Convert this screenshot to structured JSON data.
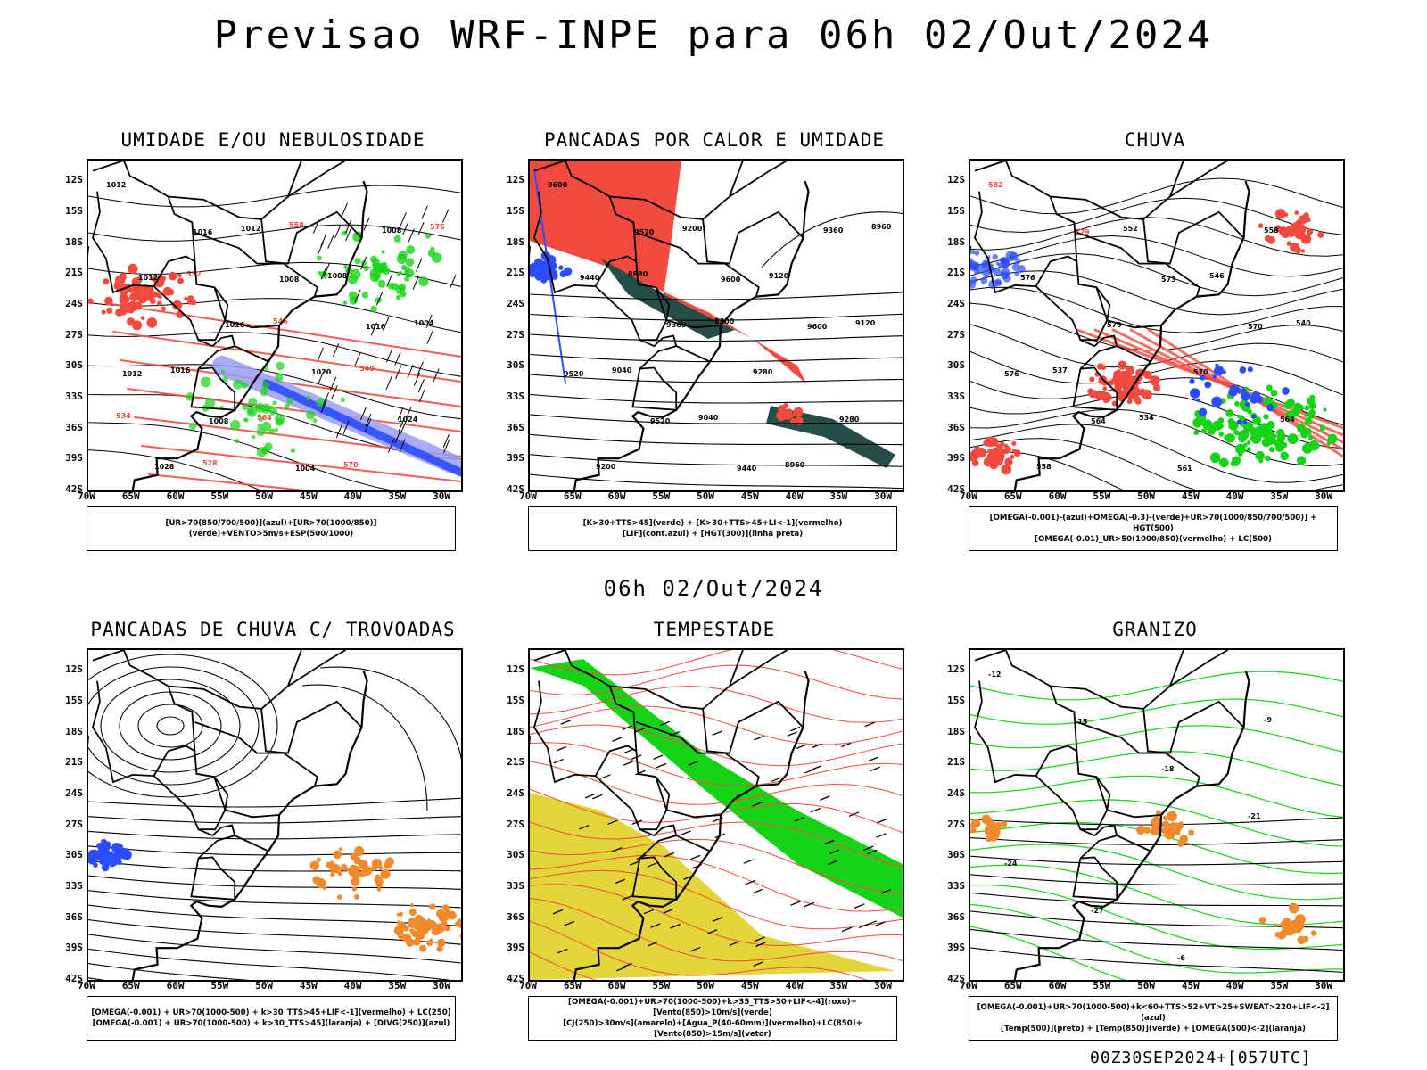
{
  "title": "Previsao WRF-INPE  para 06h 02/Out/2024",
  "subtitle": "06h 02/Out/2024",
  "footer": "00Z30SEP2024+[057UTC]",
  "lat_labels": [
    "12S",
    "15S",
    "18S",
    "21S",
    "24S",
    "27S",
    "30S",
    "33S",
    "36S",
    "39S",
    "42S"
  ],
  "lon_labels": [
    "70W",
    "65W",
    "60W",
    "55W",
    "50W",
    "45W",
    "40W",
    "35W",
    "30W"
  ],
  "colors": {
    "red": "#f24a3e",
    "green": "#17d317",
    "blue": "#2b4dff",
    "lavender": "#9a9ef2",
    "teal": "#264d48",
    "yellow": "#e3d63a",
    "orange": "#f08a2c",
    "black": "#000000"
  },
  "panels": [
    {
      "title": "UMIDADE E/OU NEBULOSIDADE",
      "legend": [
        "[UR>70(850/700/500)](azul)+[UR>70(1000/850)](verde)+VENTO>5m/s+ESP(500/1000)"
      ]
    },
    {
      "title": "PANCADAS POR CALOR E UMIDADE",
      "legend": [
        "[K>30+TTS>45](verde) + [K>30+TTS>45+LI<-1](vermelho)",
        "[LIF](cont.azul) + [HGT(300)](linha preta)"
      ]
    },
    {
      "title": "CHUVA",
      "legend": [
        "[OMEGA(-0.001)-(azul)+OMEGA(-0.3)-(verde)+UR>70(1000/850/700/500)] + HGT(500)",
        "[OMEGA(-0.01)_UR>50(1000/850)(vermelho) + LC(500)"
      ]
    },
    {
      "title": "PANCADAS DE CHUVA C/ TROVOADAS",
      "legend": [
        "[OMEGA(-0.001) + UR>70(1000-500) + k>30_TTS>45+LIF<-1](vermelho) + LC(250)",
        "[OMEGA(-0.001) + UR>70(1000-500) + k>30_TTS>45](laranja) + [DIVG(250)](azul)"
      ]
    },
    {
      "title": "TEMPESTADE",
      "legend": [
        "[OMEGA(-0.001)+UR>70(1000-500)+k>35_TTS>50+LIF<-4](roxo)+[Vento(850)>10m/s](verde)",
        "[CJ(250)>30m/s](amarelo)+[Agua_P(40-60mm)](vermelho)+LC(850)+[Vento(850)>15m/s](vetor)"
      ]
    },
    {
      "title": "GRANIZO",
      "legend": [
        "[OMEGA(-0.001)+UR>70(1000-500)+k<60+TTS>52+VT>25+SWEAT>220+LIF<-2](azul)",
        "[Temp(500)](preto) + [Temp(850)](verde) + [OMEGA(500)<-2](laranja)"
      ]
    }
  ],
  "chart_data": [
    {
      "type": "heatmap",
      "title": "UMIDADE E/OU NEBULOSIDADE",
      "xlabel": "",
      "ylabel": "",
      "xlim": [
        -70,
        -28
      ],
      "ylim": [
        -42,
        -10
      ],
      "contour_labels": [
        "1012",
        "1016",
        "1008",
        "1016",
        "1012",
        "1008",
        "1004",
        "1008",
        "1012",
        "1016",
        "1020",
        "1024",
        "1028",
        "1012",
        "1008",
        "1004",
        "1016",
        "564",
        "570",
        "576",
        "552",
        "546",
        "540",
        "534",
        "528",
        "558"
      ]
    },
    {
      "type": "heatmap",
      "title": "PANCADAS POR CALOR E UMIDADE",
      "xlabel": "",
      "ylabel": "",
      "xlim": [
        -70,
        -28
      ],
      "ylim": [
        -42,
        -10
      ],
      "contour_labels": [
        "9600",
        "9520",
        "9600",
        "9600",
        "9520",
        "9520",
        "9440",
        "9360",
        "9440",
        "9360",
        "9280",
        "9280",
        "9200",
        "9200",
        "9120",
        "9120",
        "9040",
        "9040",
        "8960",
        "8960",
        "8880",
        "8800"
      ]
    },
    {
      "type": "heatmap",
      "title": "CHUVA",
      "xlabel": "",
      "ylabel": "",
      "xlim": [
        -70,
        -28
      ],
      "ylim": [
        -42,
        -10
      ],
      "contour_labels": [
        "582",
        "579",
        "573",
        "570",
        "576",
        "564",
        "561",
        "558",
        "576",
        "579",
        "570",
        "564",
        "558",
        "552",
        "546",
        "540",
        "537",
        "534"
      ]
    },
    {
      "type": "heatmap",
      "title": "PANCADAS DE CHUVA C/ TROVOADAS",
      "xlabel": "",
      "ylabel": "",
      "xlim": [
        -70,
        -28
      ],
      "ylim": [
        -42,
        -10
      ],
      "contour_labels": []
    },
    {
      "type": "heatmap",
      "title": "TEMPESTADE",
      "xlabel": "",
      "ylabel": "",
      "xlim": [
        -70,
        -28
      ],
      "ylim": [
        -42,
        -10
      ],
      "contour_labels": []
    },
    {
      "type": "heatmap",
      "title": "GRANIZO",
      "xlabel": "",
      "ylabel": "",
      "xlim": [
        -70,
        -28
      ],
      "ylim": [
        -42,
        -10
      ],
      "contour_labels": [
        "-12",
        "-15",
        "-18",
        "-21",
        "-24",
        "-27",
        "-6",
        "-9"
      ]
    }
  ]
}
